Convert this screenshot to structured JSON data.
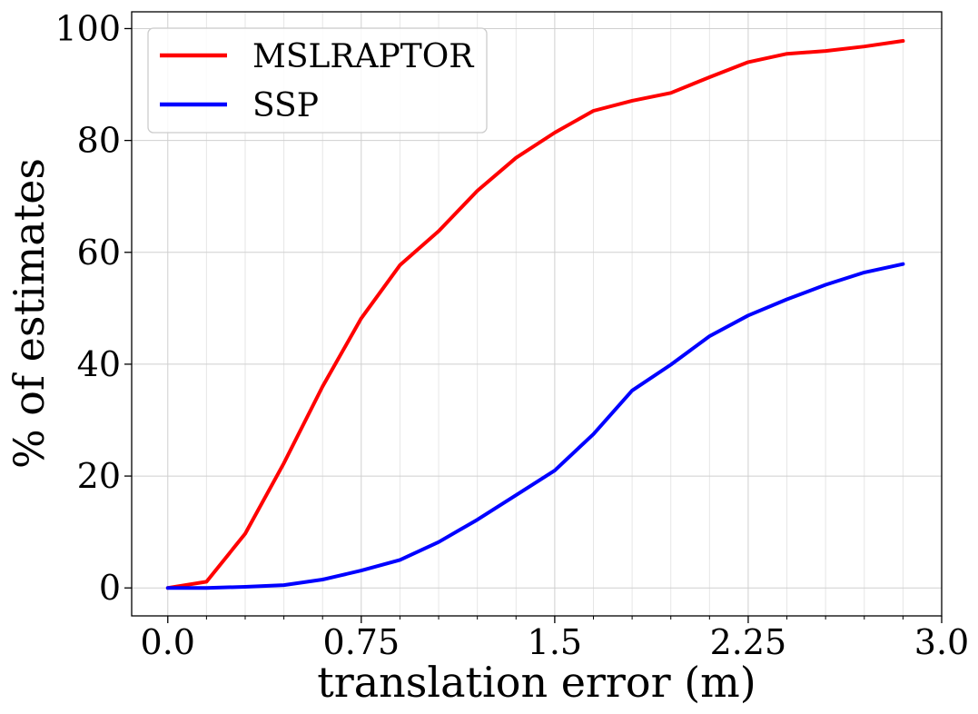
{
  "chart_data": {
    "type": "line",
    "xlabel": "translation error (m)",
    "ylabel": "% of estimates",
    "xlim": [
      -0.14,
      3.0
    ],
    "ylim": [
      -5,
      103
    ],
    "xticks": [
      0.0,
      0.75,
      1.5,
      2.25,
      3.0
    ],
    "xtick_labels": [
      "0.0",
      "0.75",
      "1.5",
      "2.25",
      "3.0"
    ],
    "yticks": [
      0,
      20,
      40,
      60,
      80,
      100
    ],
    "ytick_labels": [
      "0",
      "20",
      "40",
      "60",
      "80",
      "100"
    ],
    "grid": true,
    "legend_position": "top-left",
    "x": [
      0.0,
      0.15,
      0.3,
      0.45,
      0.6,
      0.75,
      0.9,
      1.05,
      1.2,
      1.35,
      1.5,
      1.65,
      1.8,
      1.95,
      2.1,
      2.25,
      2.4,
      2.55,
      2.7,
      2.85
    ],
    "series": [
      {
        "name": "MSLRAPTOR",
        "color": "#ff0000",
        "values": [
          0,
          1.1,
          9.7,
          22.3,
          36.0,
          48.2,
          57.7,
          63.8,
          71.0,
          76.9,
          81.4,
          85.3,
          87.1,
          88.5,
          91.3,
          94.0,
          95.5,
          96.0,
          96.8,
          97.8
        ]
      },
      {
        "name": "SSP",
        "color": "#0000ff",
        "values": [
          0,
          0,
          0.2,
          0.5,
          1.5,
          3.1,
          5.0,
          8.2,
          12.2,
          16.6,
          21.0,
          27.5,
          35.3,
          39.9,
          45.0,
          48.7,
          51.6,
          54.2,
          56.4,
          57.9
        ]
      }
    ]
  }
}
